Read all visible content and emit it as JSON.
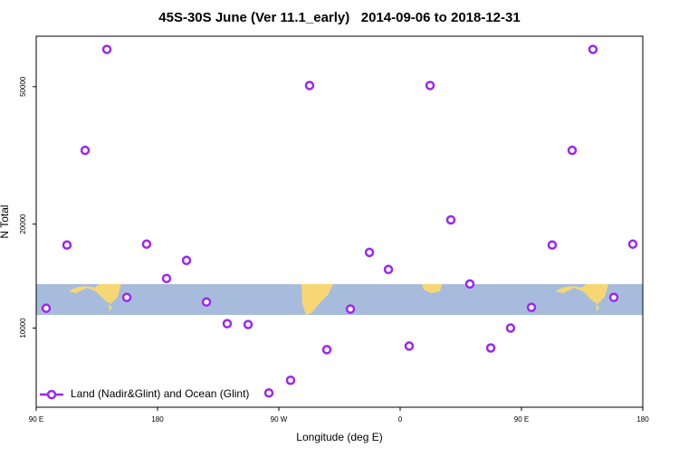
{
  "chart_data": {
    "type": "scatter",
    "title": "45S-30S June (Ver 11.1_early)   2014-09-06 to 2018-12-31",
    "x_label": "Longitude (deg E)",
    "y_label": "N Total",
    "xlim": [
      90,
      540
    ],
    "ylim": [
      5900,
      70000
    ],
    "y_log": true,
    "xticks": [
      {
        "value": 90,
        "label": "90 E"
      },
      {
        "value": 180,
        "label": "180"
      },
      {
        "value": 270,
        "label": "90 W"
      },
      {
        "value": 360,
        "label": "0"
      },
      {
        "value": 450,
        "label": "90 E"
      },
      {
        "value": 540,
        "label": "180"
      }
    ],
    "yticks": [
      10000,
      20000,
      50000
    ],
    "legend": "lower left",
    "series": [
      {
        "name": "Land (Nadir&Glint) and Ocean (Glint)",
        "color": "#9b28ef",
        "x": [
          97.4,
          112.8,
          126.3,
          142.4,
          157.2,
          171.9,
          186.7,
          201.5,
          216.3,
          231.7,
          247.2,
          262.6,
          278.7,
          292.8,
          305.6,
          323.1,
          337.2,
          351.3,
          366.7,
          382.2,
          397.6,
          411.7,
          427.2,
          441.9,
          457.4,
          472.8,
          487.6,
          503.0,
          518.5,
          532.6
        ],
        "values": [
          11410,
          17400,
          32700,
          64100,
          12270,
          17500,
          13920,
          15700,
          11900,
          10300,
          10240,
          6490,
          7060,
          50400,
          8660,
          11350,
          16560,
          14780,
          8870,
          50400,
          20570,
          13420,
          8760,
          10000,
          11480,
          17400,
          32700,
          64100,
          12270,
          17500
        ]
      }
    ]
  }
}
